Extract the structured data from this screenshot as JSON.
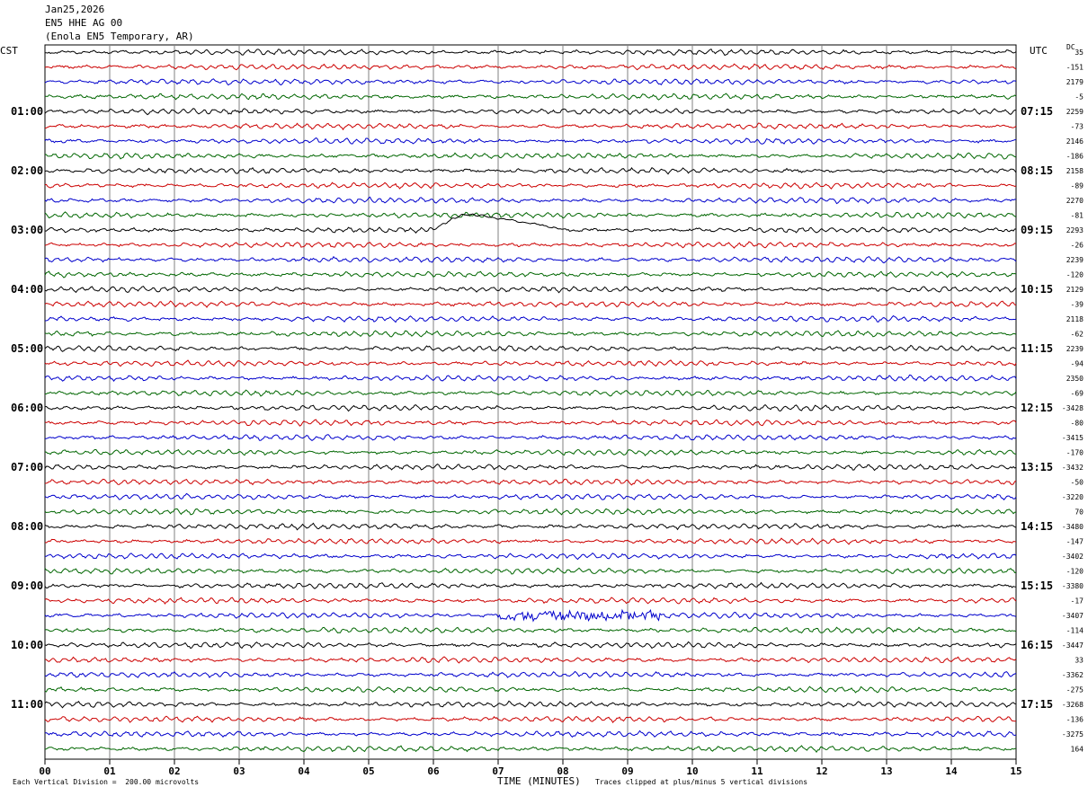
{
  "header": {
    "date": "Jan25,2026",
    "station": "EN5 HHE AG 00",
    "location": "(Enola EN5 Temporary, AR)"
  },
  "left_tz": "CST",
  "right_tz": "UTC",
  "dc_label": "DC",
  "footer": {
    "scale": "Each Vertical Division =  200.00 microvolts",
    "xlabel": "TIME (MINUTES)",
    "clip_note": "Traces clipped at plus/minus 5 vertical divisions"
  },
  "chart_data": {
    "type": "line",
    "title": "",
    "xlabel": "TIME (MINUTES)",
    "xlim": [
      0,
      15
    ],
    "x_ticks": [
      "00",
      "01",
      "02",
      "03",
      "04",
      "05",
      "06",
      "07",
      "08",
      "09",
      "10",
      "11",
      "12",
      "13",
      "14",
      "15"
    ],
    "trace_colors": [
      "#000000",
      "#cc0000",
      "#0000cc",
      "#006600"
    ],
    "trace_count": 48,
    "left_hour_labels": [
      "01:00",
      "02:00",
      "03:00",
      "04:00",
      "05:00",
      "06:00",
      "07:00",
      "08:00",
      "09:00",
      "10:00",
      "11:00"
    ],
    "right_hour_labels": [
      "07:15",
      "08:15",
      "09:15",
      "10:15",
      "11:15",
      "12:15",
      "13:15",
      "14:15",
      "15:15",
      "16:15",
      "17:15"
    ],
    "dc_offsets": [
      "35",
      "-151",
      "2179",
      "-5",
      "2259",
      "-73",
      "2146",
      "-186",
      "2158",
      "-89",
      "2270",
      "-81",
      "2293",
      "-26",
      "2239",
      "-120",
      "2129",
      "-39",
      "2118",
      "-62",
      "2239",
      "-94",
      "2350",
      "-69",
      "-3428",
      "-80",
      "-3415",
      "-170",
      "-3432",
      "-50",
      "-3220",
      "70",
      "-3480",
      "-147",
      "-3402",
      "-120",
      "-3380",
      "-17",
      "-3407",
      "-114",
      "-3447",
      "33",
      "-3362",
      "-275",
      "-3268",
      "-136",
      "-3275",
      "164"
    ],
    "events": [
      {
        "trace": 12,
        "start_min": 6.0,
        "end_min": 8.0,
        "kind": "clipped-bump"
      },
      {
        "trace": 38,
        "start_min": 7.0,
        "end_min": 9.5,
        "kind": "burst"
      }
    ]
  }
}
